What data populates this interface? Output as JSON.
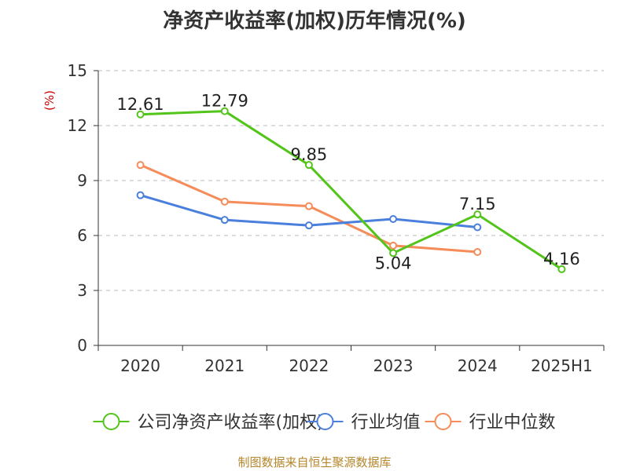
{
  "chart_data": {
    "type": "line",
    "title": "净资产收益率(加权)历年情况(%)",
    "ylabel": "(%)",
    "xlabel": "",
    "categories": [
      "2020",
      "2021",
      "2022",
      "2023",
      "2024",
      "2025H1"
    ],
    "ylim": [
      0,
      15
    ],
    "yticks": [
      0,
      3,
      6,
      9,
      12,
      15
    ],
    "grid": true,
    "legend_position": "bottom",
    "series": [
      {
        "name": "公司净资产收益率(加权)",
        "color": "#52c41a",
        "values": [
          12.61,
          12.79,
          9.85,
          5.04,
          7.15,
          4.16
        ],
        "data_labels": [
          "12.61",
          "12.79",
          "9.85",
          "5.04",
          "7.15",
          "4.16"
        ]
      },
      {
        "name": "行业均值",
        "color": "#4a7fdc",
        "values": [
          8.2,
          6.85,
          6.55,
          6.9,
          6.45,
          null
        ]
      },
      {
        "name": "行业中位数",
        "color": "#f58c5a",
        "values": [
          9.85,
          7.85,
          7.6,
          5.45,
          5.1,
          null
        ]
      }
    ]
  },
  "source": "制图数据来自恒生聚源数据库"
}
